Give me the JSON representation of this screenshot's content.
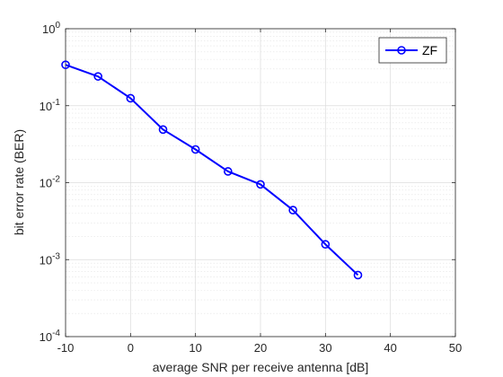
{
  "chart_data": {
    "type": "line",
    "xlabel": "average SNR per receive antenna [dB]",
    "ylabel": "bit error rate (BER)",
    "xlim": [
      -10,
      50
    ],
    "ylim": [
      0.0001,
      1
    ],
    "yscale": "log",
    "grid": true,
    "minor_grid": true,
    "legend_position": "top-right",
    "x_ticks": [
      -10,
      0,
      10,
      20,
      30,
      40,
      50
    ],
    "x_tick_labels": [
      "-10",
      "0",
      "10",
      "20",
      "30",
      "40",
      "50"
    ],
    "y_ticks": [
      {
        "value": 1,
        "base": "10",
        "exp": "0"
      },
      {
        "value": 0.1,
        "base": "10",
        "exp": "-1"
      },
      {
        "value": 0.01,
        "base": "10",
        "exp": "-2"
      },
      {
        "value": 0.001,
        "base": "10",
        "exp": "-3"
      },
      {
        "value": 0.0001,
        "base": "10",
        "exp": "-4"
      }
    ],
    "series": [
      {
        "name": "ZF",
        "color": "#0000ff",
        "marker": "circle",
        "x": [
          -10,
          -5,
          0,
          5,
          10,
          15,
          20,
          25,
          30,
          35
        ],
        "y": [
          0.34,
          0.24,
          0.125,
          0.049,
          0.027,
          0.014,
          0.0095,
          0.0044,
          0.00158,
          0.00063
        ]
      }
    ]
  }
}
